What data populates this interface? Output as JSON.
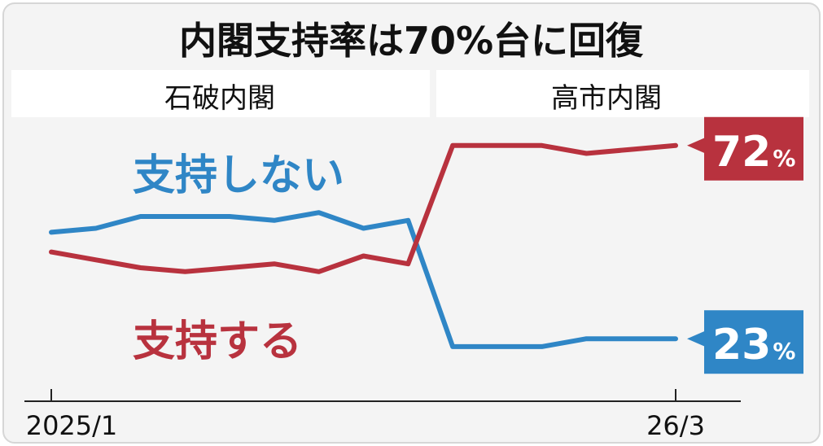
{
  "chart_data": {
    "type": "line",
    "title": "内閣支持率は70%台に回復",
    "periods": [
      "石破内閣",
      "高市内閣"
    ],
    "x_tick_labels": [
      "2025/1",
      "26/3"
    ],
    "grid": false,
    "series": [
      {
        "name": "支持しない",
        "color": "#2f86c6",
        "values": [
          50,
          51,
          54,
          54,
          54,
          53,
          55,
          51,
          53,
          21,
          21,
          21,
          23,
          23,
          23
        ],
        "end_label": "23",
        "end_unit": "%"
      },
      {
        "name": "支持する",
        "color": "#b8323e",
        "values": [
          45,
          43,
          41,
          40,
          41,
          42,
          40,
          44,
          42,
          72,
          72,
          72,
          70,
          71,
          72
        ],
        "end_label": "72",
        "end_unit": "%"
      }
    ],
    "ylim": [
      15,
      80
    ]
  }
}
